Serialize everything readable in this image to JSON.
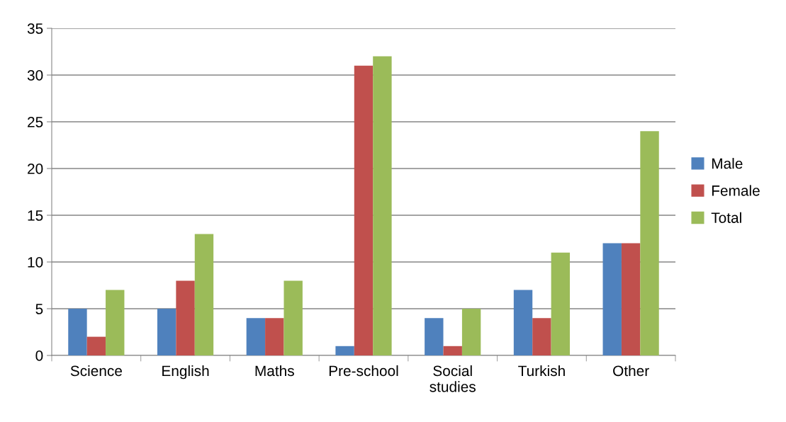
{
  "chart_data": {
    "type": "bar",
    "categories": [
      "Science",
      "English",
      "Maths",
      "Pre-school",
      "Social studies",
      "Turkish",
      "Other"
    ],
    "series": [
      {
        "name": "Male",
        "color": "#4f81bd",
        "values": [
          5,
          5,
          4,
          1,
          4,
          7,
          12
        ]
      },
      {
        "name": "Female",
        "color": "#c0504d",
        "values": [
          2,
          8,
          4,
          31,
          1,
          4,
          12
        ]
      },
      {
        "name": "Total",
        "color": "#9bbb59",
        "values": [
          7,
          13,
          8,
          32,
          5,
          11,
          24
        ]
      }
    ],
    "ylim": [
      0,
      35
    ],
    "yticks": [
      0,
      5,
      10,
      15,
      20,
      25,
      30,
      35
    ],
    "grid": "y",
    "legend": "right"
  }
}
